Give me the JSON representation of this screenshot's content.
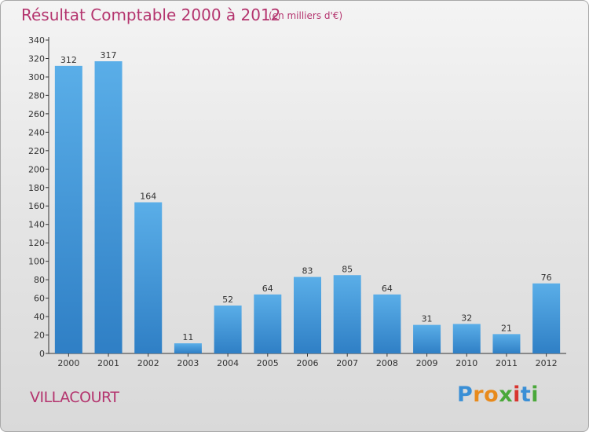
{
  "header": {
    "title": "Résultat Comptable 2000 à 2012",
    "subtitle": "(en milliers d'€)"
  },
  "footer": {
    "town": "VILLACOURT",
    "brand_letters": [
      "P",
      "r",
      "o",
      "x",
      "i",
      "t",
      "i"
    ],
    "brand_colors": [
      "#3a8fd6",
      "#e88a1c",
      "#e88a1c",
      "#4aa83a",
      "#d8342e",
      "#3a8fd6",
      "#4aa83a"
    ]
  },
  "colors": {
    "bar_light": "#5aaee8",
    "bar_dark": "#2f7fc5",
    "axis": "#333333",
    "title": "#b4346e"
  },
  "chart_data": {
    "type": "bar",
    "title": "Résultat Comptable 2000 à 2012",
    "subtitle": "(en milliers d'€)",
    "categories": [
      "2000",
      "2001",
      "2002",
      "2003",
      "2004",
      "2005",
      "2006",
      "2007",
      "2008",
      "2009",
      "2010",
      "2011",
      "2012"
    ],
    "values": [
      312,
      317,
      164,
      11,
      52,
      64,
      83,
      85,
      64,
      31,
      32,
      21,
      76
    ],
    "ylim": [
      0,
      340
    ],
    "ytick_step": 20,
    "xlabel": "",
    "ylabel": "",
    "grid": false
  }
}
